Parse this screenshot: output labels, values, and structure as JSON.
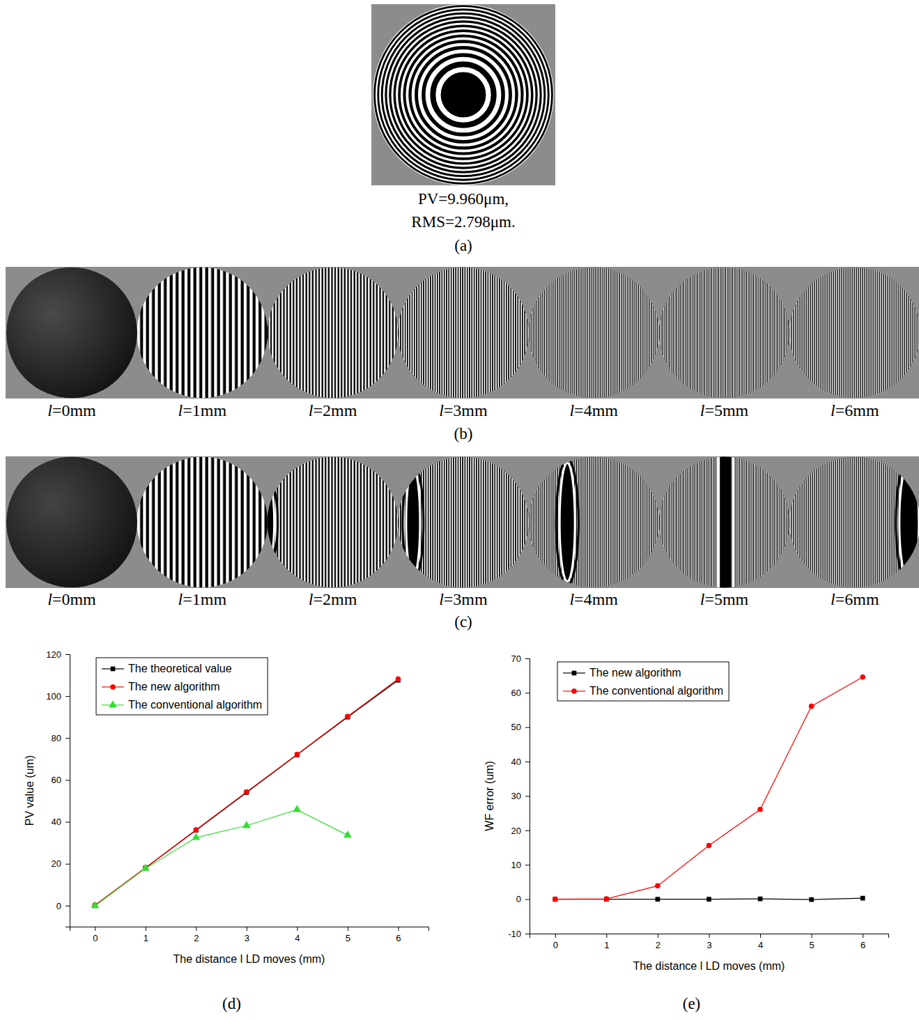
{
  "figure": {
    "a": {
      "label": "(a)",
      "caption": [
        "PV=9.960μm,",
        "RMS=2.798μm."
      ]
    },
    "b": {
      "label": "(b)",
      "items": [
        "l=0mm",
        "l=1mm",
        "l=2mm",
        "l=3mm",
        "l=4mm",
        "l=5mm",
        "l=6mm"
      ]
    },
    "c": {
      "label": "(c)",
      "items": [
        "l=0mm",
        "l=1mm",
        "l=2mm",
        "l=3mm",
        "l=4mm",
        "l=5mm",
        "l=6mm"
      ]
    },
    "d": {
      "label": "(d)"
    },
    "e": {
      "label": "(e)"
    }
  },
  "chart_data": [
    {
      "type": "line",
      "x_label": "The distance l LD moves (mm)",
      "y_label": "PV value (um)",
      "x": [
        0,
        1,
        2,
        3,
        4,
        5,
        6
      ],
      "xlim": [
        -0.5,
        6.6
      ],
      "xticks": [
        0,
        1,
        2,
        3,
        4,
        5,
        6
      ],
      "ylim": [
        -10,
        120
      ],
      "yticks": [
        0,
        20,
        40,
        60,
        80,
        100,
        120
      ],
      "legend": "upper left",
      "series": [
        {
          "name": "The theoretical value",
          "color": "#000000",
          "marker": "square",
          "line_style": "solid",
          "values": [
            0,
            18,
            36,
            54,
            72,
            90,
            107.6
          ]
        },
        {
          "name": "The new algorithm",
          "color": "#ff0000",
          "marker": "circle",
          "line_style": "solid",
          "values": [
            0.3,
            18.1,
            36.2,
            54.3,
            72.2,
            90.3,
            108.2
          ]
        },
        {
          "name": "The conventional algorithm",
          "color": "#33dd33",
          "marker": "triangle",
          "line_style": "solid",
          "values": [
            0,
            17.8,
            32.5,
            38.2,
            45.8,
            33.6,
            null
          ]
        }
      ]
    },
    {
      "type": "line",
      "x_label": "The distance l LD moves (mm)",
      "y_label": "WF error (um)",
      "x": [
        0,
        1,
        2,
        3,
        4,
        5,
        6
      ],
      "xlim": [
        -0.5,
        6.5
      ],
      "xticks": [
        0,
        1,
        2,
        3,
        4,
        5,
        6
      ],
      "ylim": [
        -10,
        70
      ],
      "yticks": [
        -10,
        0,
        10,
        20,
        30,
        40,
        50,
        60,
        70
      ],
      "legend": "upper left",
      "series": [
        {
          "name": "The new algorithm",
          "color": "#000000",
          "marker": "square",
          "line_style": "solid",
          "values": [
            0,
            0,
            0,
            0,
            0.1,
            -0.1,
            0.3
          ]
        },
        {
          "name": "The conventional algorithm",
          "color": "#ff0000",
          "marker": "circle",
          "line_style": "solid",
          "values": [
            0,
            0.1,
            3.9,
            15.6,
            26.1,
            56.1,
            64.6
          ]
        }
      ]
    }
  ]
}
